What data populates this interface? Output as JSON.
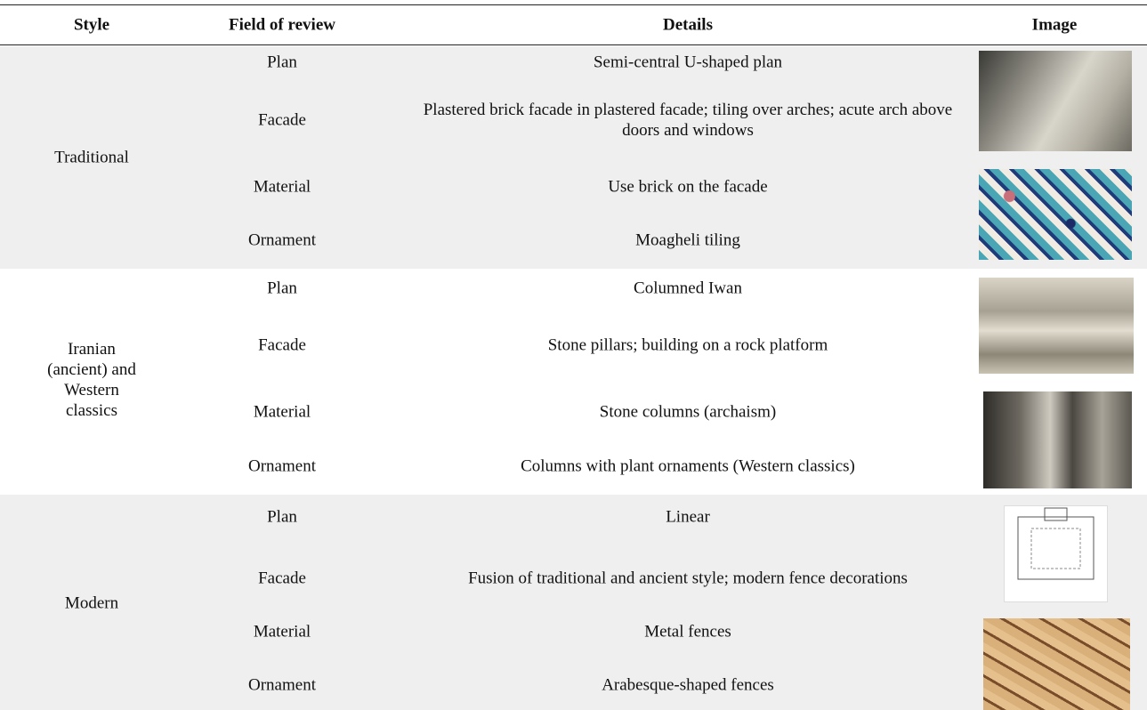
{
  "table": {
    "columns": [
      "Style",
      "Field of review",
      "Details",
      "Image"
    ],
    "groups": [
      {
        "style": "Traditional",
        "rows": [
          {
            "field": "Plan",
            "details": "Semi-central U-shaped plan"
          },
          {
            "field": "Facade",
            "details": "Plastered brick facade in plastered facade; tiling over arches; acute arch above doors and windows"
          },
          {
            "field": "Material",
            "details": "Use brick on the facade"
          },
          {
            "field": "Ornament",
            "details": "Moagheli tiling"
          }
        ]
      },
      {
        "style": "Iranian (ancient) and Western classics",
        "rows": [
          {
            "field": "Plan",
            "details": "Columned Iwan"
          },
          {
            "field": "Facade",
            "details": "Stone pillars; building on a rock platform"
          },
          {
            "field": "Material",
            "details": "Stone columns (archaism)"
          },
          {
            "field": "Ornament",
            "details": "Columns with plant ornaments (Western classics)"
          }
        ]
      },
      {
        "style": "Modern",
        "rows": [
          {
            "field": "Plan",
            "details": "Linear"
          },
          {
            "field": "Facade",
            "details": "Fusion of traditional and ancient style; modern fence decorations"
          },
          {
            "field": "Material",
            "details": "Metal fences"
          },
          {
            "field": "Ornament",
            "details": "Arabesque-shaped fences"
          }
        ]
      }
    ]
  }
}
